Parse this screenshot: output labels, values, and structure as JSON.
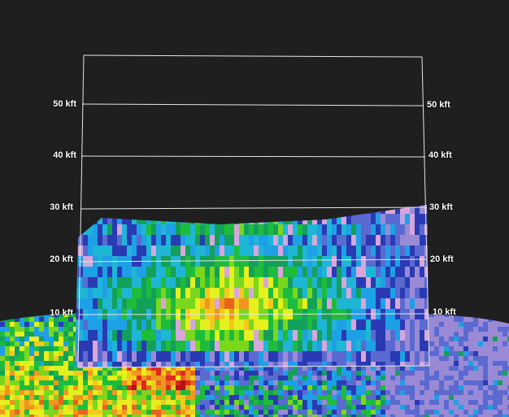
{
  "altitude_labels": [
    "10 kft",
    "20 kft",
    "30 kft",
    "40 kft",
    "50 kft"
  ],
  "colors": {
    "background": "#1f1f1f",
    "grid": "#e6e6e6",
    "palette": [
      "#b9a6e6",
      "#9a8ad6",
      "#5a6ad0",
      "#2a3ab4",
      "#1ea0e6",
      "#1fb6d6",
      "#13a05a",
      "#1ebc3c",
      "#79d81e",
      "#e6f01e",
      "#f5c81e",
      "#f0961e",
      "#e6641e",
      "#e0281e",
      "#b41414",
      "#d7a6dc"
    ]
  }
}
